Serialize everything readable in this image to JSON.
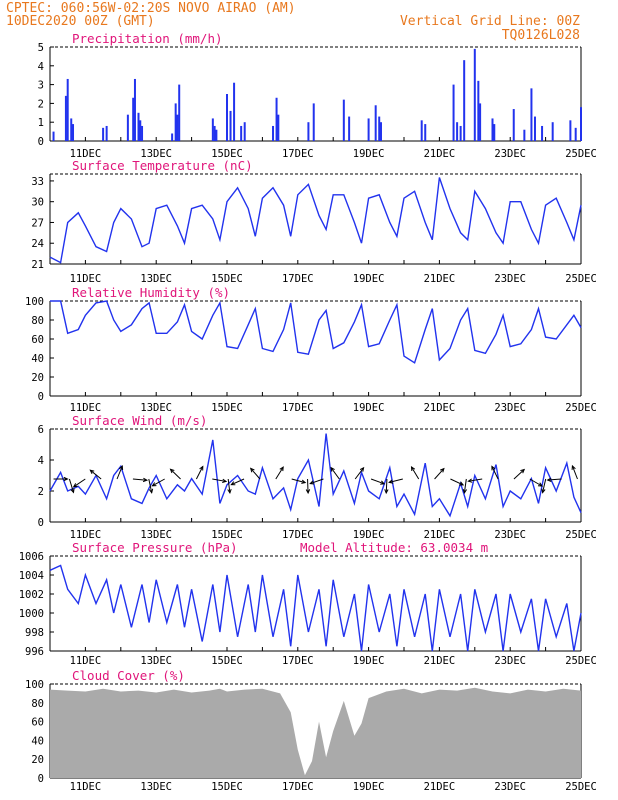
{
  "header": {
    "line1_left": "CPTEC:   060:56W-02:20S   NOVO AIRAO (AM)",
    "line2_left": "10DEC2020 00Z (GMT)",
    "line1_right": "Vertical Grid Line: 00Z",
    "line2_right": "TQ0126L028"
  },
  "colors": {
    "header": "#e8781e",
    "title": "#e0157a",
    "series": "#2233ee",
    "cloud": "#aaaaaa"
  },
  "x_ticks": [
    "11DEC",
    "13DEC",
    "15DEC",
    "17DEC",
    "19DEC",
    "21DEC",
    "23DEC",
    "25DEC"
  ],
  "chart_data": [
    {
      "type": "bar",
      "title": "Precipitation (mm/h)",
      "ylim": [
        0,
        5
      ],
      "yticks": [
        "0",
        "1",
        "2",
        "3",
        "4",
        "5"
      ],
      "x_days": [
        0.1,
        0.45,
        0.5,
        0.6,
        0.65,
        1.5,
        1.6,
        2.2,
        2.35,
        2.4,
        2.5,
        2.55,
        2.6,
        3.45,
        3.55,
        3.6,
        3.65,
        4.6,
        4.65,
        4.7,
        5.0,
        5.1,
        5.2,
        5.4,
        5.5,
        6.3,
        6.4,
        6.45,
        7.3,
        7.45,
        8.3,
        8.45,
        9.0,
        9.2,
        9.3,
        9.35,
        10.5,
        10.6,
        11.4,
        11.5,
        11.6,
        11.7,
        12.0,
        12.1,
        12.15,
        12.5,
        12.55,
        13.1,
        13.4,
        13.6,
        13.7,
        13.9,
        14.2,
        14.7,
        14.85,
        15.0
      ],
      "values": [
        0.5,
        2.4,
        3.3,
        1.2,
        0.9,
        0.7,
        0.8,
        1.4,
        2.3,
        3.3,
        1.5,
        1.1,
        0.8,
        0.4,
        2.0,
        1.4,
        3.0,
        1.2,
        0.8,
        0.6,
        2.5,
        1.6,
        3.1,
        0.8,
        1.0,
        0.8,
        2.3,
        1.4,
        1.0,
        2.0,
        2.2,
        1.3,
        1.2,
        1.9,
        1.3,
        1.0,
        1.1,
        0.9,
        3.0,
        1.0,
        0.8,
        4.3,
        4.9,
        3.2,
        2.0,
        1.2,
        0.9,
        1.7,
        0.6,
        2.8,
        1.3,
        0.8,
        1.0,
        1.1,
        0.7,
        1.8
      ]
    },
    {
      "type": "line",
      "title": "Surface Temperature (nC)",
      "ylim": [
        21,
        34
      ],
      "yticks": [
        "21",
        "24",
        "27",
        "30",
        "33"
      ],
      "x_days": [
        0,
        0.3,
        0.5,
        0.8,
        1.0,
        1.3,
        1.6,
        1.8,
        2.0,
        2.3,
        2.6,
        2.8,
        3.0,
        3.3,
        3.6,
        3.8,
        4.0,
        4.3,
        4.6,
        4.8,
        5.0,
        5.3,
        5.6,
        5.8,
        6.0,
        6.3,
        6.6,
        6.8,
        7.0,
        7.3,
        7.6,
        7.8,
        8.0,
        8.3,
        8.6,
        8.8,
        9.0,
        9.3,
        9.6,
        9.8,
        10.0,
        10.3,
        10.6,
        10.8,
        11.0,
        11.3,
        11.6,
        11.8,
        12.0,
        12.3,
        12.6,
        12.8,
        13.0,
        13.3,
        13.6,
        13.8,
        14.0,
        14.3,
        14.6,
        14.8,
        15.0
      ],
      "values": [
        22.0,
        21.2,
        27.0,
        28.4,
        26.5,
        23.5,
        22.8,
        27.0,
        29.0,
        27.5,
        23.5,
        24.0,
        29.0,
        29.5,
        26.5,
        24.0,
        29.0,
        29.5,
        27.5,
        24.5,
        30.0,
        32.0,
        29.0,
        25.0,
        30.5,
        32.0,
        29.5,
        25.0,
        31.0,
        32.5,
        28.0,
        26.0,
        31.0,
        31.0,
        27.0,
        24.0,
        30.5,
        31.0,
        27.0,
        25.0,
        30.5,
        31.5,
        27.0,
        24.5,
        33.5,
        29.0,
        25.5,
        24.5,
        31.5,
        29.0,
        25.5,
        24.0,
        30.0,
        30.0,
        26.0,
        24.0,
        29.5,
        30.5,
        27.0,
        24.5,
        29.5
      ]
    },
    {
      "type": "line",
      "title": "Relative Humidity (%)",
      "ylim": [
        0,
        100
      ],
      "yticks": [
        "0",
        "20",
        "40",
        "60",
        "80",
        "100"
      ],
      "x_days": [
        0,
        0.3,
        0.5,
        0.8,
        1.0,
        1.3,
        1.6,
        1.8,
        2.0,
        2.3,
        2.6,
        2.8,
        3.0,
        3.3,
        3.6,
        3.8,
        4.0,
        4.3,
        4.6,
        4.8,
        5.0,
        5.3,
        5.6,
        5.8,
        6.0,
        6.3,
        6.6,
        6.8,
        7.0,
        7.3,
        7.6,
        7.8,
        8.0,
        8.3,
        8.6,
        8.8,
        9.0,
        9.3,
        9.6,
        9.8,
        10.0,
        10.3,
        10.6,
        10.8,
        11.0,
        11.3,
        11.6,
        11.8,
        12.0,
        12.3,
        12.6,
        12.8,
        13.0,
        13.3,
        13.6,
        13.8,
        14.0,
        14.3,
        14.6,
        14.8,
        15.0
      ],
      "values": [
        100,
        100,
        66,
        70,
        85,
        98,
        100,
        80,
        68,
        75,
        92,
        98,
        66,
        66,
        78,
        96,
        68,
        60,
        85,
        98,
        52,
        50,
        75,
        92,
        50,
        47,
        70,
        98,
        46,
        44,
        80,
        90,
        50,
        56,
        78,
        96,
        52,
        55,
        80,
        96,
        42,
        35,
        70,
        92,
        38,
        50,
        80,
        92,
        48,
        45,
        65,
        85,
        52,
        55,
        70,
        92,
        62,
        60,
        75,
        85,
        72
      ]
    },
    {
      "type": "line",
      "title": "Surface Wind (m/s)",
      "ylim": [
        0,
        6
      ],
      "yticks": [
        "0",
        "2",
        "4",
        "6"
      ],
      "x_days": [
        0,
        0.3,
        0.5,
        0.8,
        1.0,
        1.3,
        1.6,
        1.8,
        2.0,
        2.3,
        2.6,
        2.8,
        3.0,
        3.3,
        3.6,
        3.8,
        4.0,
        4.3,
        4.6,
        4.8,
        5.0,
        5.3,
        5.6,
        5.8,
        6.0,
        6.3,
        6.6,
        6.8,
        7.0,
        7.3,
        7.6,
        7.8,
        8.0,
        8.3,
        8.6,
        8.8,
        9.0,
        9.3,
        9.6,
        9.8,
        10.0,
        10.3,
        10.6,
        10.8,
        11.0,
        11.3,
        11.6,
        11.8,
        12.0,
        12.3,
        12.6,
        12.8,
        13.0,
        13.3,
        13.6,
        13.8,
        14.0,
        14.3,
        14.6,
        14.8,
        15.0
      ],
      "values": [
        2.0,
        3.2,
        2.0,
        2.3,
        1.8,
        3.0,
        1.5,
        3.0,
        3.6,
        1.5,
        1.2,
        2.2,
        3.0,
        1.5,
        2.4,
        2.0,
        2.8,
        1.8,
        5.3,
        1.2,
        2.4,
        3.0,
        2.0,
        1.8,
        3.5,
        1.5,
        2.2,
        0.8,
        2.8,
        4.0,
        1.0,
        5.7,
        1.8,
        3.3,
        1.2,
        3.2,
        2.0,
        1.5,
        3.5,
        1.0,
        1.8,
        0.5,
        3.8,
        1.0,
        1.5,
        0.4,
        2.5,
        1.0,
        3.0,
        1.5,
        3.7,
        1.0,
        2.0,
        1.5,
        2.8,
        1.2,
        3.5,
        2.0,
        3.8,
        1.6,
        0.6
      ],
      "vector_arrows_count": 34
    },
    {
      "type": "line",
      "title": "Surface Pressure (hPa)",
      "annotation": "Model Altitude: 63.0034 m",
      "ylim": [
        996,
        1006
      ],
      "yticks": [
        "996",
        "998",
        "1000",
        "1002",
        "1004",
        "1006"
      ],
      "x_days": [
        0,
        0.3,
        0.5,
        0.8,
        1.0,
        1.3,
        1.6,
        1.8,
        2.0,
        2.3,
        2.6,
        2.8,
        3.0,
        3.3,
        3.6,
        3.8,
        4.0,
        4.3,
        4.6,
        4.8,
        5.0,
        5.3,
        5.6,
        5.8,
        6.0,
        6.3,
        6.6,
        6.8,
        7.0,
        7.3,
        7.6,
        7.8,
        8.0,
        8.3,
        8.6,
        8.8,
        9.0,
        9.3,
        9.6,
        9.8,
        10.0,
        10.3,
        10.6,
        10.8,
        11.0,
        11.3,
        11.6,
        11.8,
        12.0,
        12.3,
        12.6,
        12.8,
        13.0,
        13.3,
        13.6,
        13.8,
        14.0,
        14.3,
        14.6,
        14.8,
        15.0
      ],
      "values": [
        1004.5,
        1005.0,
        1002.5,
        1001.0,
        1004.0,
        1001.0,
        1003.5,
        1000.0,
        1003.0,
        998.5,
        1003.0,
        999.0,
        1003.5,
        999.0,
        1003.0,
        998.5,
        1002.5,
        997.0,
        1003.0,
        998.0,
        1004.0,
        997.5,
        1003.0,
        998.0,
        1004.0,
        997.5,
        1002.5,
        996.5,
        1004.0,
        998.0,
        1002.5,
        996.5,
        1003.5,
        997.5,
        1002.0,
        996.0,
        1003.0,
        998.0,
        1002.0,
        996.5,
        1002.5,
        997.5,
        1002.0,
        996.0,
        1002.5,
        997.5,
        1002.0,
        996.0,
        1002.5,
        998.0,
        1002.0,
        996.0,
        1002.0,
        998.0,
        1001.5,
        996.0,
        1001.5,
        997.5,
        1001.0,
        996.0,
        1000.0
      ]
    },
    {
      "type": "area",
      "title": "Cloud Cover (%)",
      "ylim": [
        0,
        100
      ],
      "yticks": [
        "0",
        "20",
        "40",
        "60",
        "80",
        "100"
      ],
      "x_days": [
        0,
        0.5,
        1.0,
        1.5,
        2.0,
        2.5,
        3.0,
        3.5,
        4.0,
        4.5,
        4.8,
        5.0,
        5.5,
        6.0,
        6.5,
        6.8,
        7.0,
        7.2,
        7.4,
        7.6,
        7.8,
        8.0,
        8.3,
        8.6,
        8.8,
        9.0,
        9.5,
        10.0,
        10.5,
        11.0,
        11.5,
        12.0,
        12.5,
        13.0,
        13.5,
        14.0,
        14.5,
        15.0
      ],
      "values": [
        94,
        93,
        92,
        95,
        92,
        93,
        91,
        94,
        91,
        93,
        95,
        92,
        94,
        95,
        90,
        70,
        30,
        3,
        18,
        60,
        22,
        50,
        82,
        45,
        58,
        85,
        92,
        95,
        90,
        94,
        93,
        96,
        92,
        90,
        94,
        92,
        95,
        93
      ]
    }
  ]
}
